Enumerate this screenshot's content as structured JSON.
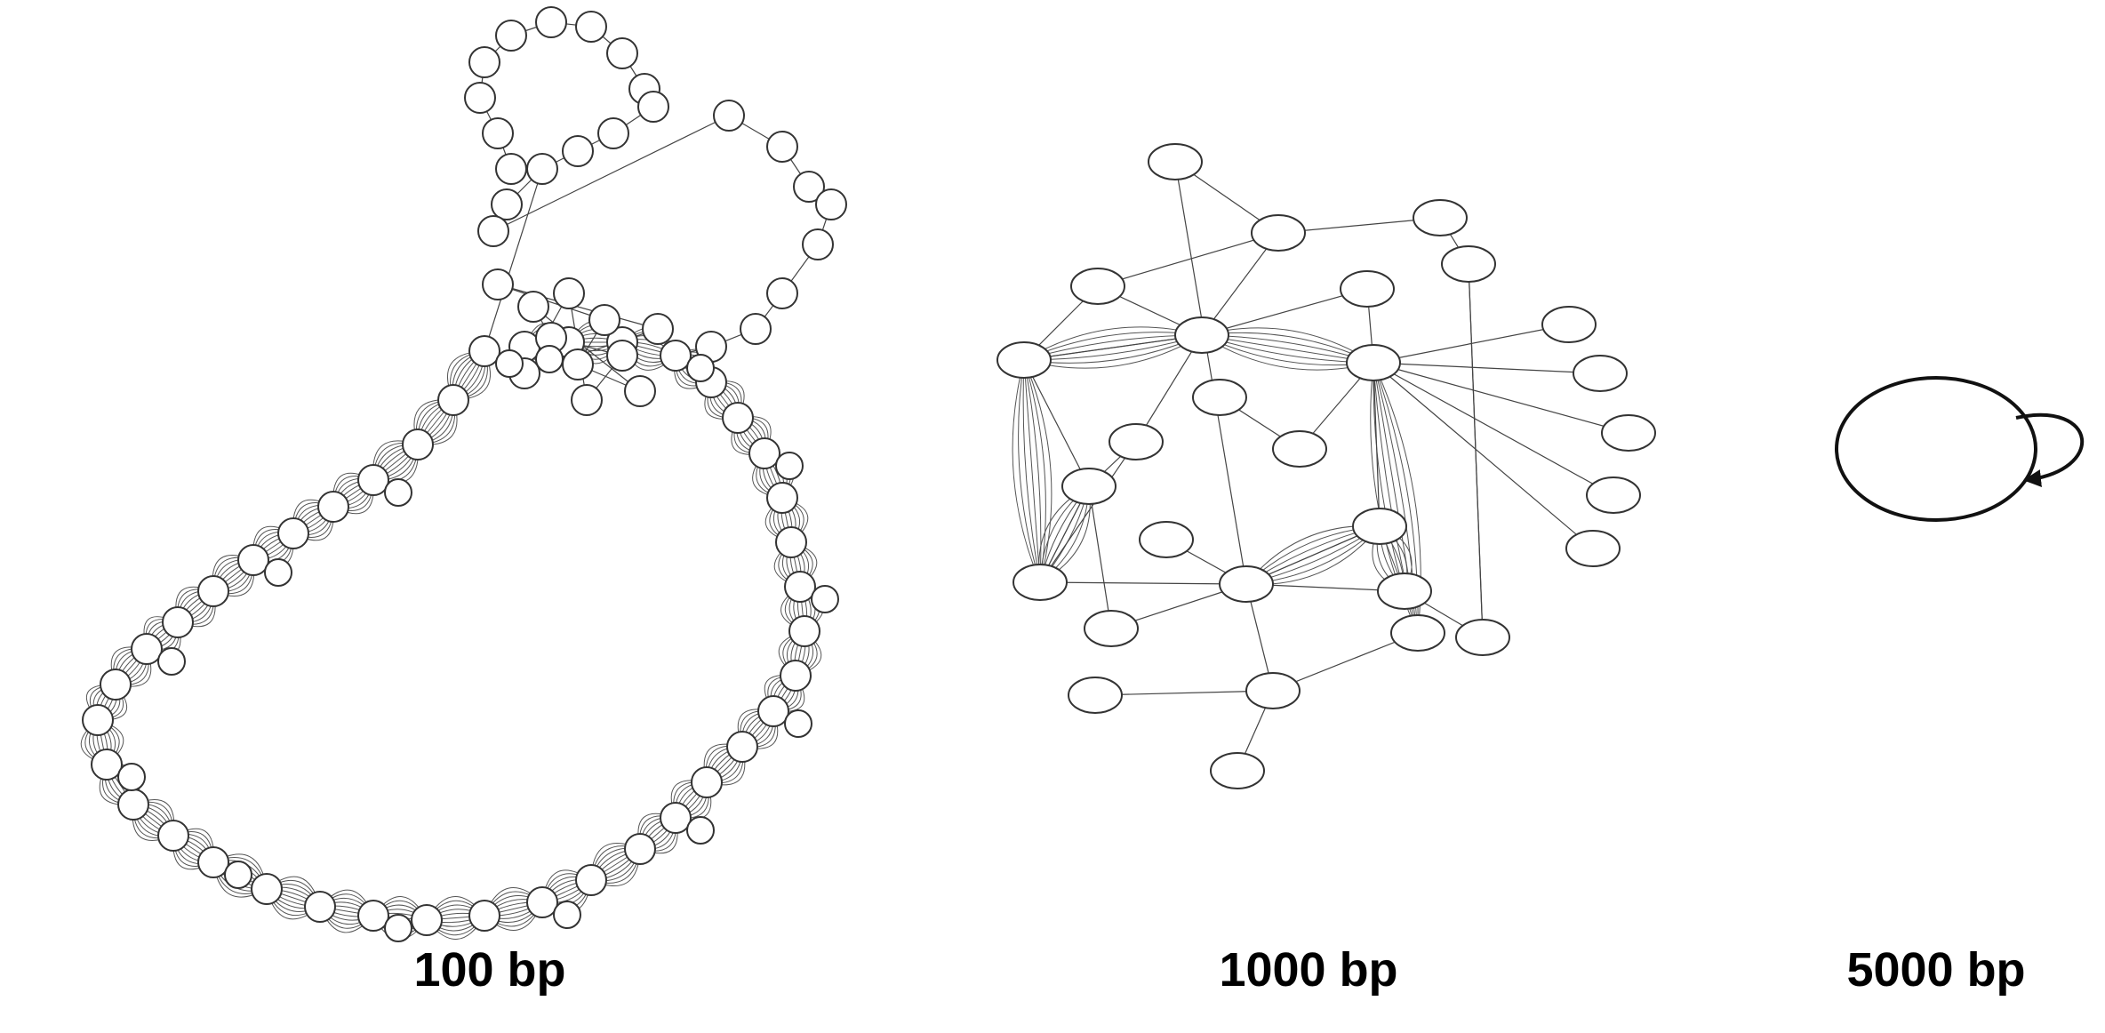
{
  "figure": {
    "panels": [
      {
        "id": "panel-100bp",
        "label": "100 bp"
      },
      {
        "id": "panel-1000bp",
        "label": "1000 bp"
      },
      {
        "id": "panel-5000bp",
        "label": "5000 bp"
      }
    ]
  }
}
